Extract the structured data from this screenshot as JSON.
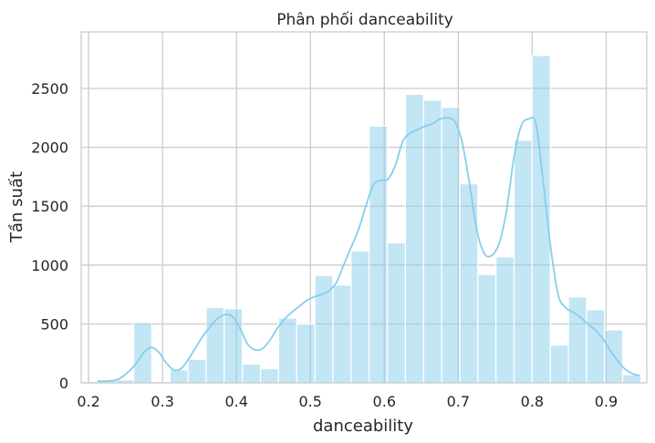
{
  "chart_data": {
    "type": "bar",
    "title": "Phân phối danceability",
    "xlabel": "danceability",
    "ylabel": "Tần suất",
    "xlim": [
      0.19,
      0.955
    ],
    "ylim": [
      0,
      2980
    ],
    "x_ticks": [
      0.2,
      0.3,
      0.4,
      0.5,
      0.6,
      0.7,
      0.8,
      0.9
    ],
    "x_tick_labels": [
      "0.2",
      "0.3",
      "0.4",
      "0.5",
      "0.6",
      "0.7",
      "0.8",
      "0.9"
    ],
    "y_ticks": [
      0,
      500,
      1000,
      1500,
      2000,
      2500
    ],
    "y_tick_labels": [
      "0",
      "500",
      "1000",
      "1500",
      "2000",
      "2500"
    ],
    "grid": true,
    "bins": [
      {
        "start": 0.212,
        "end": 0.2365,
        "count": 20
      },
      {
        "start": 0.2365,
        "end": 0.261,
        "count": 25
      },
      {
        "start": 0.261,
        "end": 0.2855,
        "count": 510
      },
      {
        "start": 0.2855,
        "end": 0.31,
        "count": 0
      },
      {
        "start": 0.31,
        "end": 0.3345,
        "count": 110
      },
      {
        "start": 0.3345,
        "end": 0.359,
        "count": 200
      },
      {
        "start": 0.359,
        "end": 0.3835,
        "count": 640
      },
      {
        "start": 0.3835,
        "end": 0.408,
        "count": 630
      },
      {
        "start": 0.408,
        "end": 0.4325,
        "count": 160
      },
      {
        "start": 0.4325,
        "end": 0.457,
        "count": 120
      },
      {
        "start": 0.457,
        "end": 0.4815,
        "count": 550
      },
      {
        "start": 0.4815,
        "end": 0.506,
        "count": 500
      },
      {
        "start": 0.506,
        "end": 0.5305,
        "count": 910
      },
      {
        "start": 0.5305,
        "end": 0.555,
        "count": 830
      },
      {
        "start": 0.555,
        "end": 0.5795,
        "count": 1120
      },
      {
        "start": 0.5795,
        "end": 0.604,
        "count": 2180
      },
      {
        "start": 0.604,
        "end": 0.6285,
        "count": 1190
      },
      {
        "start": 0.6285,
        "end": 0.653,
        "count": 2450
      },
      {
        "start": 0.653,
        "end": 0.6775,
        "count": 2400
      },
      {
        "start": 0.6775,
        "end": 0.702,
        "count": 2340
      },
      {
        "start": 0.702,
        "end": 0.7265,
        "count": 1690
      },
      {
        "start": 0.7265,
        "end": 0.751,
        "count": 920
      },
      {
        "start": 0.751,
        "end": 0.7755,
        "count": 1070
      },
      {
        "start": 0.7755,
        "end": 0.8,
        "count": 2060
      },
      {
        "start": 0.8,
        "end": 0.8245,
        "count": 2780
      },
      {
        "start": 0.8245,
        "end": 0.849,
        "count": 320
      },
      {
        "start": 0.849,
        "end": 0.8735,
        "count": 730
      },
      {
        "start": 0.8735,
        "end": 0.898,
        "count": 620
      },
      {
        "start": 0.898,
        "end": 0.9225,
        "count": 450
      },
      {
        "start": 0.9225,
        "end": 0.947,
        "count": 70
      }
    ],
    "kde": {
      "x": [
        0.212,
        0.225,
        0.24,
        0.255,
        0.265,
        0.275,
        0.285,
        0.295,
        0.305,
        0.315,
        0.325,
        0.335,
        0.345,
        0.355,
        0.365,
        0.375,
        0.385,
        0.395,
        0.405,
        0.415,
        0.425,
        0.435,
        0.445,
        0.455,
        0.465,
        0.475,
        0.485,
        0.495,
        0.505,
        0.515,
        0.525,
        0.535,
        0.545,
        0.555,
        0.565,
        0.575,
        0.585,
        0.595,
        0.605,
        0.615,
        0.625,
        0.635,
        0.645,
        0.655,
        0.665,
        0.675,
        0.685,
        0.695,
        0.705,
        0.715,
        0.725,
        0.735,
        0.745,
        0.755,
        0.765,
        0.775,
        0.785,
        0.795,
        0.805,
        0.815,
        0.825,
        0.835,
        0.845,
        0.855,
        0.865,
        0.875,
        0.885,
        0.895,
        0.905,
        0.915,
        0.925,
        0.935,
        0.945
      ],
      "y": [
        15,
        15,
        30,
        100,
        170,
        260,
        300,
        260,
        170,
        110,
        120,
        200,
        300,
        400,
        480,
        550,
        580,
        560,
        460,
        330,
        280,
        290,
        360,
        460,
        540,
        600,
        650,
        700,
        730,
        750,
        780,
        850,
        1000,
        1150,
        1300,
        1500,
        1680,
        1720,
        1730,
        1850,
        2050,
        2120,
        2150,
        2180,
        2200,
        2240,
        2250,
        2220,
        2050,
        1700,
        1300,
        1100,
        1080,
        1180,
        1450,
        1900,
        2180,
        2240,
        2200,
        1700,
        1150,
        750,
        640,
        600,
        560,
        500,
        450,
        380,
        280,
        190,
        120,
        80,
        60
      ]
    },
    "colors": {
      "bar_fill": "#87ceeb",
      "bar_opacity": 0.5,
      "kde_line": "#87ceeb"
    }
  }
}
